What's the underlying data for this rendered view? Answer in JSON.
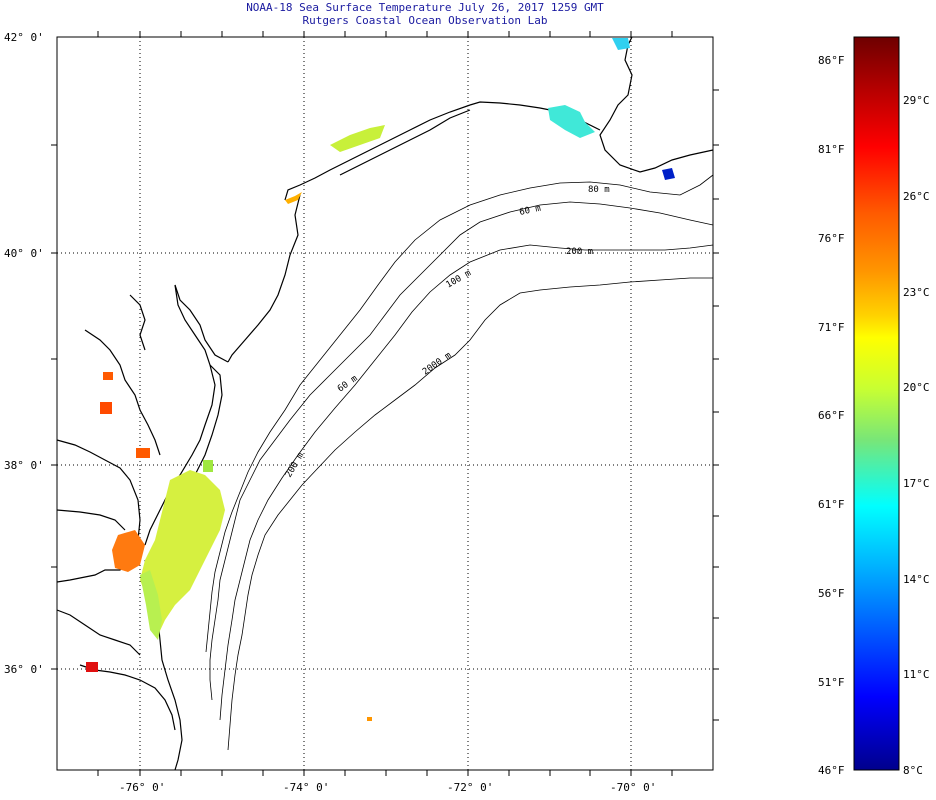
{
  "header": {
    "title": "NOAA-18 Sea Surface Temperature July 26, 2017 1259 GMT",
    "subtitle": "Rutgers Coastal Ocean Observation Lab"
  },
  "map": {
    "lat_labels": [
      "42° 0'",
      "40° 0'",
      "38° 0'",
      "36° 0'"
    ],
    "lon_labels": [
      "-76° 0'",
      "-74° 0'",
      "-72° 0'",
      "-70° 0'"
    ],
    "contour_labels": [
      "80 m",
      "60 m",
      "200 m",
      "100 m",
      "60 m",
      "2000 m",
      "200 m"
    ]
  },
  "colorbar": {
    "f_labels": [
      "86°F",
      "81°F",
      "76°F",
      "71°F",
      "66°F",
      "61°F",
      "56°F",
      "51°F",
      "46°F"
    ],
    "c_labels": [
      "29°C",
      "26°C",
      "23°C",
      "20°C",
      "17°C",
      "14°C",
      "11°C",
      "8°C"
    ],
    "colors": [
      "#6e0000",
      "#b40000",
      "#ff0000",
      "#ff5a00",
      "#ff9600",
      "#ffd200",
      "#ffff00",
      "#c8ff32",
      "#78e678",
      "#00ffff",
      "#00b4ff",
      "#0064ff",
      "#0000ff",
      "#00008c"
    ]
  }
}
